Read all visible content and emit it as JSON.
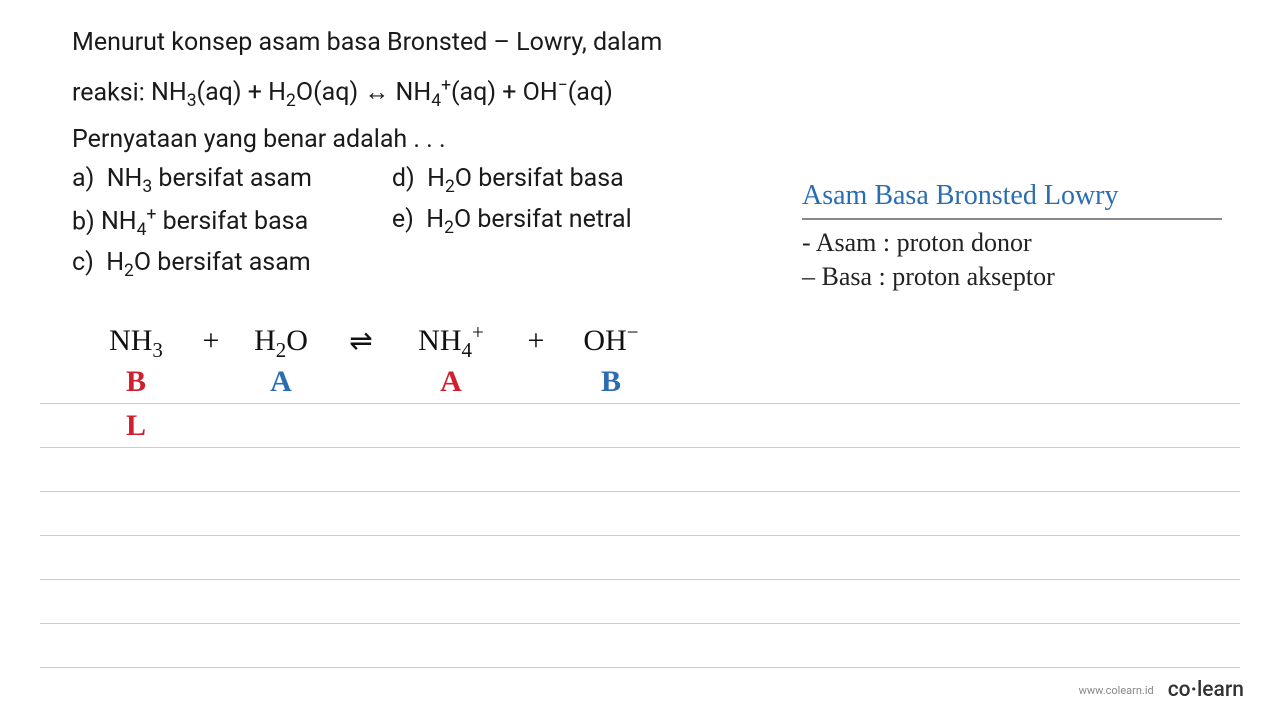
{
  "question": {
    "line1": "Menurut konsep asam basa Bronsted – Lowry, dalam",
    "line2_prefix": "reaksi:   ",
    "reaction_html": "NH<sub>3</sub>(aq) + H<sub>2</sub>O(aq) ↔ NH<sub>4</sub><sup>+</sup>(aq) + OH<sup>−</sup>(aq)",
    "line3": "Pernyataan yang benar adalah . . .",
    "options_col1": [
      {
        "letter": "a)",
        "text_html": "NH<sub>3</sub> bersifat asam"
      },
      {
        "letter": "b)",
        "text_html": "NH<sub>4</sub><sup>+</sup> bersifat basa"
      },
      {
        "letter": "c)",
        "text_html": "H<sub>2</sub>O bersifat asam"
      }
    ],
    "options_col2": [
      {
        "letter": "d)",
        "text_html": "H<sub>2</sub>O bersifat basa"
      },
      {
        "letter": "e)",
        "text_html": "H<sub>2</sub>O bersifat netral"
      }
    ]
  },
  "notes": {
    "title": "Asam Basa Bronsted Lowry",
    "line1": "- Asam : proton donor",
    "line2": "– Basa : proton akseptor",
    "title_color": "#2a6db0",
    "text_color": "#222222"
  },
  "equation": {
    "terms": {
      "nh3": "NH",
      "nh3_sub": "3",
      "plus1": "+",
      "h2o": "H",
      "h2o_sub_a": "2",
      "h2o_o": "O",
      "arrow": "⇌",
      "nh4": "NH",
      "nh4_sub": "4",
      "nh4_sup": "+",
      "plus2": "+",
      "oh": "OH",
      "oh_sup": "−"
    },
    "labels": {
      "nh3": {
        "text": "B",
        "color": "red"
      },
      "h2o": {
        "text": "A",
        "color": "blue"
      },
      "nh4": {
        "text": "A",
        "color": "red"
      },
      "oh": {
        "text": "B",
        "color": "blue"
      }
    },
    "extra": {
      "text": "L",
      "color": "red"
    }
  },
  "footer": {
    "url": "www.colearn.id",
    "logo_pre": "co",
    "logo_dot": "·",
    "logo_post": "learn"
  },
  "colors": {
    "red": "#d02030",
    "blue": "#2a6db0",
    "rule": "#cccccc",
    "text": "#1a1a1a"
  }
}
